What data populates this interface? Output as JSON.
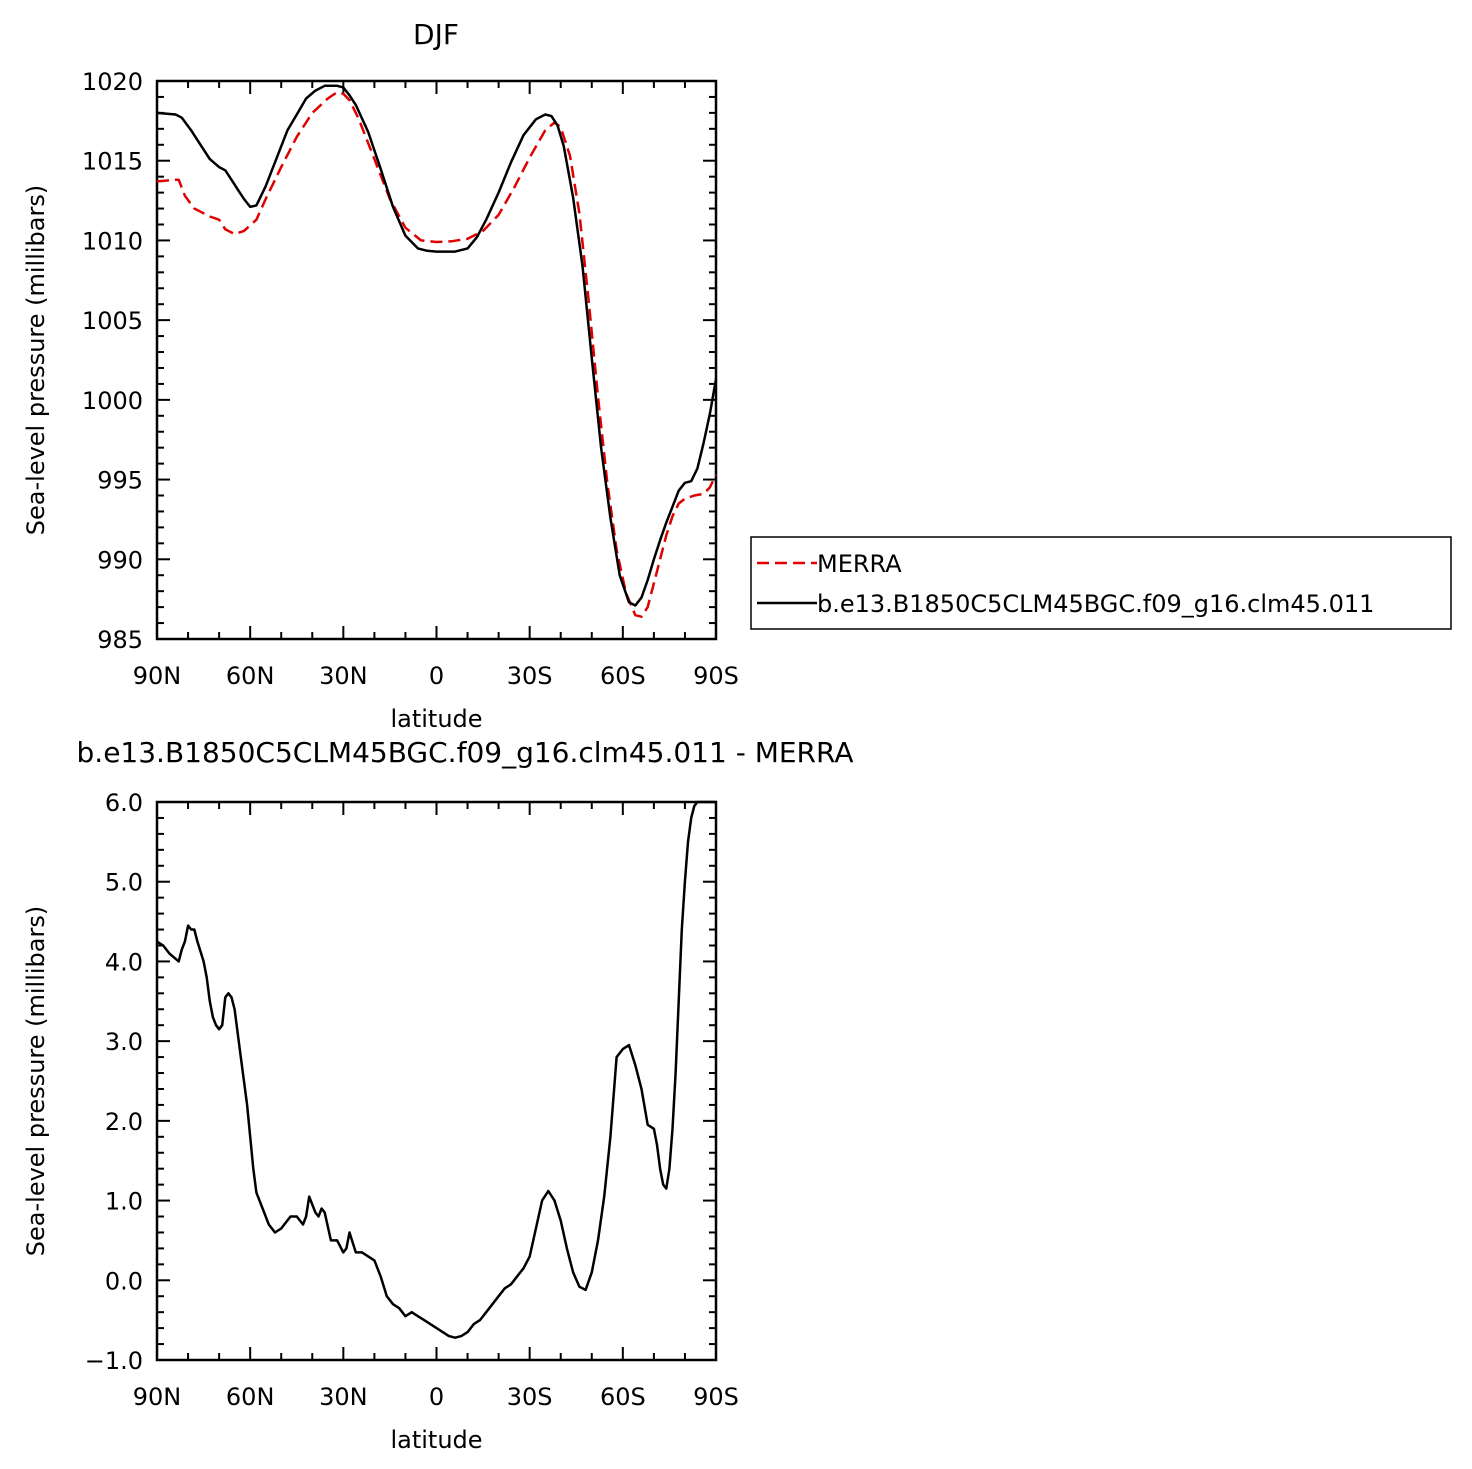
{
  "chart_data": [
    {
      "type": "line",
      "title": "DJF",
      "xlabel": "latitude",
      "ylabel": "Sea-level pressure (millibars)",
      "xlim": [
        90,
        -90
      ],
      "ylim": [
        985,
        1020
      ],
      "xticks": [
        90,
        60,
        30,
        0,
        -30,
        -60,
        -90
      ],
      "xticklabels": [
        "90N",
        "60N",
        "30N",
        "0",
        "30S",
        "60S",
        "90S"
      ],
      "yticks": [
        985,
        990,
        995,
        1000,
        1005,
        1010,
        1015,
        1020
      ],
      "yticklabels": [
        "985",
        "990",
        "995",
        "1000",
        "1005",
        "1010",
        "1015",
        "1020"
      ],
      "grid": false,
      "legend_placement": "right",
      "series": [
        {
          "name": "MERRA",
          "color": "#e00000",
          "dash": "dashed",
          "x": [
            90,
            84,
            83,
            81,
            78,
            76,
            73,
            70,
            68,
            65,
            62,
            58,
            55,
            50,
            45,
            40,
            35,
            32,
            30,
            28,
            25,
            20,
            15,
            10,
            5,
            0,
            -5,
            -10,
            -15,
            -20,
            -25,
            -30,
            -35,
            -38,
            -40,
            -43,
            -46,
            -49,
            -52,
            -55,
            -58,
            -61,
            -64,
            -66,
            -68,
            -70,
            -72,
            -74,
            -76,
            -78,
            -80,
            -83,
            -86,
            -88,
            -90
          ],
          "y": [
            1013.7,
            1013.8,
            1013.8,
            1012.8,
            1012.0,
            1011.8,
            1011.5,
            1011.3,
            1010.7,
            1010.4,
            1010.6,
            1011.3,
            1012.6,
            1014.6,
            1016.5,
            1018.0,
            1018.9,
            1019.3,
            1019.2,
            1018.8,
            1017.6,
            1015.1,
            1012.6,
            1010.8,
            1010.0,
            1009.9,
            1009.95,
            1010.1,
            1010.6,
            1011.6,
            1013.3,
            1015.2,
            1016.9,
            1017.4,
            1017.1,
            1015.3,
            1011.7,
            1006.2,
            1000.2,
            994.8,
            990.6,
            987.9,
            986.5,
            986.4,
            987.0,
            988.5,
            990.0,
            991.5,
            992.7,
            993.5,
            993.8,
            994.0,
            994.1,
            994.5,
            995.3
          ]
        },
        {
          "name": "b.e13.B1850C5CLM45BGC.f09_g16.clm45.011",
          "color": "#000000",
          "dash": "solid",
          "x": [
            90,
            84,
            82,
            79,
            76,
            73,
            70,
            68,
            66,
            64,
            62,
            60,
            58,
            55,
            52,
            48,
            45,
            42,
            39,
            36,
            34,
            32,
            30,
            28,
            26,
            22,
            18,
            14,
            10,
            6,
            3,
            0,
            -3,
            -6,
            -10,
            -13,
            -16,
            -20,
            -24,
            -28,
            -32,
            -35,
            -37,
            -39,
            -41,
            -44,
            -47,
            -50,
            -53,
            -56,
            -59,
            -62,
            -64,
            -66,
            -68,
            -70,
            -72,
            -74,
            -76,
            -78,
            -80,
            -82,
            -84,
            -86,
            -88,
            -90
          ],
          "y": [
            1018.0,
            1017.9,
            1017.7,
            1016.9,
            1016.0,
            1015.1,
            1014.6,
            1014.4,
            1013.8,
            1013.2,
            1012.6,
            1012.1,
            1012.2,
            1013.4,
            1014.9,
            1016.9,
            1017.9,
            1018.9,
            1019.4,
            1019.7,
            1019.7,
            1019.7,
            1019.6,
            1019.1,
            1018.5,
            1016.8,
            1014.5,
            1012.1,
            1010.3,
            1009.5,
            1009.35,
            1009.3,
            1009.3,
            1009.3,
            1009.5,
            1010.2,
            1011.3,
            1013.0,
            1014.9,
            1016.6,
            1017.6,
            1017.9,
            1017.8,
            1017.2,
            1015.9,
            1012.7,
            1008.4,
            1002.6,
            997.0,
            992.6,
            989.0,
            987.3,
            987.1,
            987.6,
            988.7,
            990.0,
            991.2,
            992.3,
            993.3,
            994.3,
            994.8,
            994.9,
            995.7,
            997.3,
            999.1,
            1001.3
          ]
        }
      ]
    },
    {
      "type": "line",
      "title": "b.e13.B1850C5CLM45BGC.f09_g16.clm45.011 - MERRA",
      "xlabel": "latitude",
      "ylabel": "Sea-level pressure (millibars)",
      "xlim": [
        90,
        -90
      ],
      "ylim": [
        -1.0,
        6.0
      ],
      "xticks": [
        90,
        60,
        30,
        0,
        -30,
        -60,
        -90
      ],
      "xticklabels": [
        "90N",
        "60N",
        "30N",
        "0",
        "30S",
        "60S",
        "90S"
      ],
      "yticks": [
        -1.0,
        0.0,
        1.0,
        2.0,
        3.0,
        4.0,
        5.0,
        6.0
      ],
      "yticklabels": [
        "−1.0",
        "0.0",
        "1.0",
        "2.0",
        "3.0",
        "4.0",
        "5.0",
        "6.0"
      ],
      "grid": false,
      "series": [
        {
          "color": "#000000",
          "dash": "solid",
          "x": [
            90,
            88,
            86,
            83,
            82,
            81,
            80,
            79,
            78,
            77,
            75,
            74,
            73,
            72,
            71,
            70,
            69,
            68,
            67,
            66,
            65,
            63,
            61,
            59,
            58,
            56,
            54,
            52,
            50,
            48,
            47,
            45,
            44,
            43,
            42,
            41,
            40,
            39,
            38,
            37,
            36,
            34,
            32,
            30,
            29,
            28,
            26,
            24,
            22,
            20,
            18,
            16,
            14,
            12,
            10,
            8,
            6,
            4,
            2,
            0,
            -2,
            -4,
            -6,
            -8,
            -10,
            -12,
            -14,
            -16,
            -18,
            -20,
            -22,
            -24,
            -26,
            -28,
            -30,
            -32,
            -34,
            -36,
            -38,
            -40,
            -42,
            -44,
            -46,
            -48,
            -50,
            -52,
            -54,
            -56,
            -58,
            -60,
            -62,
            -64,
            -66,
            -68,
            -70,
            -71,
            -72,
            -73,
            -74,
            -75,
            -76,
            -77,
            -78,
            -79,
            -80,
            -81,
            -82,
            -83,
            -84,
            -85,
            -86,
            -87,
            -88,
            -89,
            -90
          ],
          "y": [
            4.25,
            4.2,
            4.1,
            4.0,
            4.15,
            4.25,
            4.45,
            4.4,
            4.4,
            4.25,
            4.0,
            3.8,
            3.5,
            3.3,
            3.2,
            3.15,
            3.2,
            3.55,
            3.6,
            3.55,
            3.4,
            2.8,
            2.2,
            1.4,
            1.1,
            0.9,
            0.7,
            0.6,
            0.65,
            0.75,
            0.8,
            0.8,
            0.75,
            0.7,
            0.8,
            1.05,
            0.95,
            0.85,
            0.8,
            0.9,
            0.85,
            0.5,
            0.5,
            0.35,
            0.4,
            0.6,
            0.35,
            0.35,
            0.3,
            0.25,
            0.05,
            -0.2,
            -0.3,
            -0.35,
            -0.45,
            -0.4,
            -0.45,
            -0.5,
            -0.55,
            -0.6,
            -0.65,
            -0.7,
            -0.72,
            -0.7,
            -0.65,
            -0.55,
            -0.5,
            -0.4,
            -0.3,
            -0.2,
            -0.1,
            -0.05,
            0.05,
            0.15,
            0.3,
            0.65,
            1.0,
            1.12,
            1.0,
            0.75,
            0.4,
            0.1,
            -0.08,
            -0.12,
            0.1,
            0.5,
            1.05,
            1.8,
            2.8,
            2.9,
            2.95,
            2.7,
            2.4,
            1.95,
            1.9,
            1.7,
            1.4,
            1.2,
            1.15,
            1.4,
            1.9,
            2.6,
            3.5,
            4.4,
            5.0,
            5.5,
            5.8,
            5.95,
            6.0,
            6.0,
            6.0,
            6.0,
            6.0,
            6.0,
            6.0
          ]
        }
      ]
    }
  ]
}
